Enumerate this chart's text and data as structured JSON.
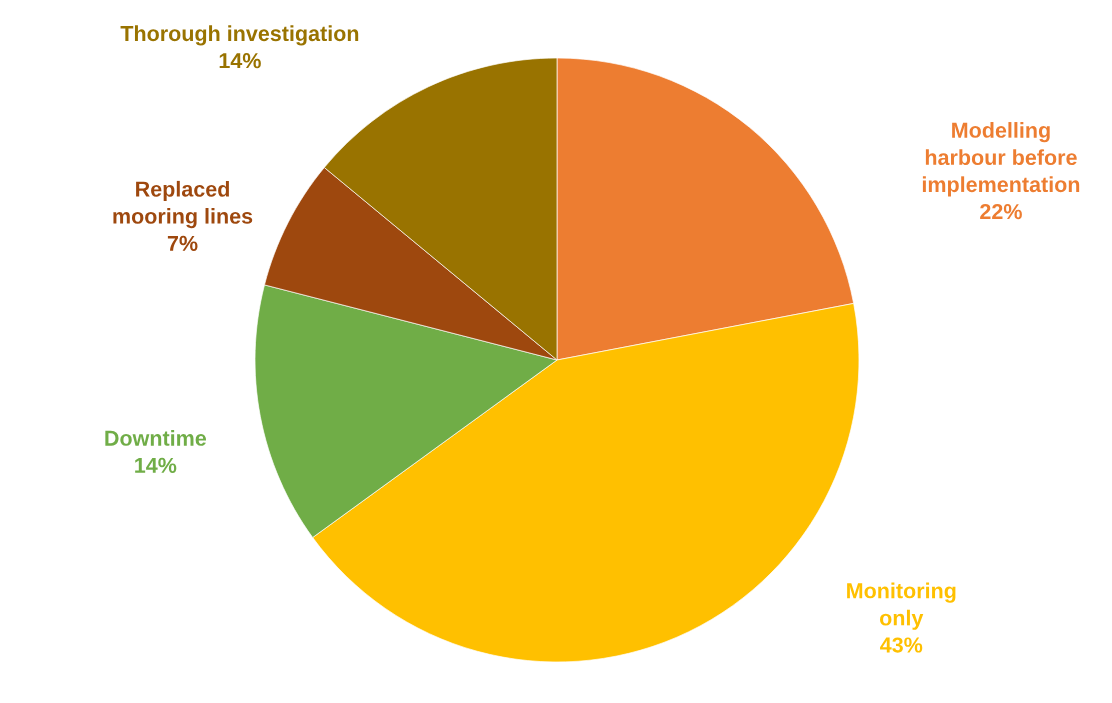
{
  "chart_data": {
    "type": "pie",
    "categories": [
      "Modelling\nharbour before\nimplementation",
      "Monitoring\nonly",
      "Downtime",
      "Replaced\nmooring lines",
      "Thorough investigation"
    ],
    "values": [
      22,
      43,
      14,
      7,
      14
    ],
    "value_labels": [
      "22%",
      "43%",
      "14%",
      "7%",
      "14%"
    ],
    "colors": [
      "#ed7d31",
      "#ffc000",
      "#70ad47",
      "#9e480e",
      "#997300"
    ],
    "legend": false
  }
}
